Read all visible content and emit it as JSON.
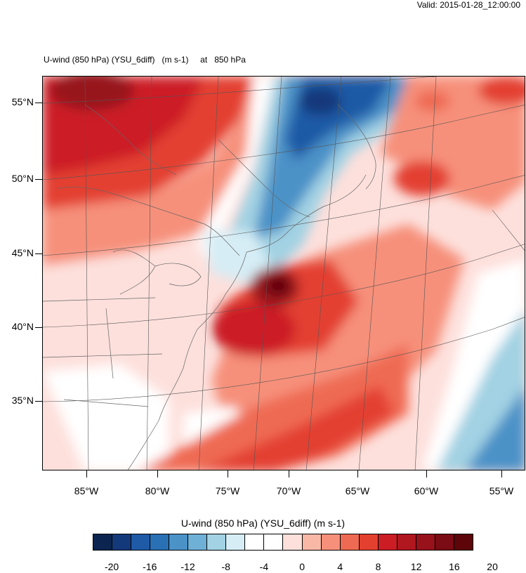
{
  "header": {
    "valid_time": "Valid: 2015-01-28_12:00:00",
    "plot_title": "U-wind (850 hPa) (YSU_6diff)   (m s-1)     at   850 hPa"
  },
  "map": {
    "variable": "U-wind (850 hPa) (YSU_6diff)",
    "units": "m s-1",
    "level": "850 hPa",
    "lat_labels": [
      "55°N",
      "50°N",
      "45°N",
      "40°N",
      "35°N"
    ],
    "lon_labels": [
      "85°W",
      "80°W",
      "75°W",
      "70°W",
      "65°W",
      "60°W",
      "55°W"
    ],
    "features": [
      {
        "name": "strong-westerly-jet-northwest",
        "value_range": [
          12,
          22
        ]
      },
      {
        "name": "easterly-flow-northeast-band",
        "value_range": [
          -20,
          -4
        ]
      },
      {
        "name": "cyclone-westerly-core-gulf-of-maine",
        "value_range": [
          16,
          22
        ]
      },
      {
        "name": "westerly-belt-southeast-atlantic",
        "value_range": [
          6,
          14
        ]
      },
      {
        "name": "easterly-flow-southeast-corner",
        "value_range": [
          -12,
          -2
        ]
      }
    ]
  },
  "colorbar": {
    "title": "U-wind (850 hPa) (YSU_6diff)  (m s-1)",
    "colors": [
      "#0b2550",
      "#14397a",
      "#1f5aa6",
      "#2970b4",
      "#4b92c7",
      "#6fb0d6",
      "#a2d2e3",
      "#d6edf5",
      "#ffffff",
      "#ffffff",
      "#fde0dc",
      "#f9b8a6",
      "#f6907a",
      "#ef6a52",
      "#e34030",
      "#cc1d25",
      "#b1171f",
      "#97121b",
      "#7b0b14",
      "#5d0509"
    ],
    "labels": [
      "-20",
      "-16",
      "-12",
      "-8",
      "-4",
      "0",
      "4",
      "8",
      "12",
      "16",
      "20"
    ]
  }
}
